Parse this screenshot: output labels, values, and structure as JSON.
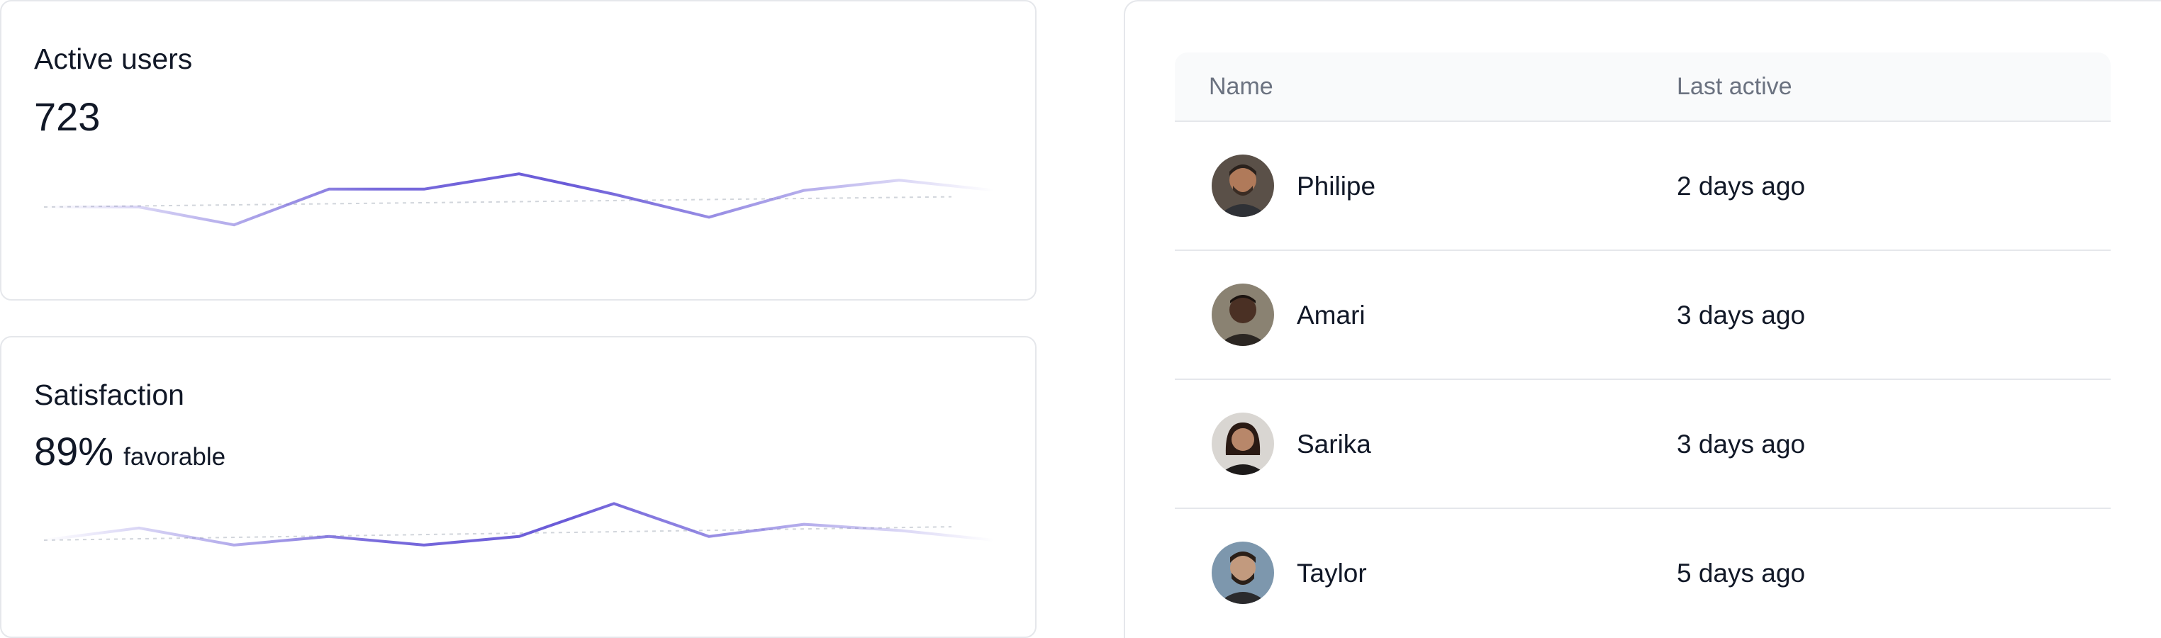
{
  "cards": {
    "active_users": {
      "title": "Active users",
      "value": "723",
      "sparkline": [
        0.5,
        0.5,
        0.36,
        0.64,
        0.64,
        0.76,
        0.6,
        0.42,
        0.63,
        0.71,
        0.63
      ],
      "trend": [
        0.5,
        0.58
      ]
    },
    "satisfaction": {
      "title": "Satisfaction",
      "value": "89%",
      "value_suffix": "favorable",
      "sparkline": [
        0.5,
        0.6,
        0.46,
        0.53,
        0.46,
        0.53,
        0.8,
        0.53,
        0.63,
        0.58,
        0.5
      ],
      "trend": [
        0.5,
        0.61
      ]
    }
  },
  "accent_color": "#6a5bd8",
  "table": {
    "columns": [
      "Name",
      "Last active"
    ],
    "rows": [
      {
        "name": "Philipe",
        "last_active": "2 days ago",
        "avatar": "avatar-photo"
      },
      {
        "name": "Amari",
        "last_active": "3 days ago",
        "avatar": "avatar-photo"
      },
      {
        "name": "Sarika",
        "last_active": "3 days ago",
        "avatar": "avatar-photo"
      },
      {
        "name": "Taylor",
        "last_active": "5 days ago",
        "avatar": "avatar-photo"
      }
    ]
  }
}
